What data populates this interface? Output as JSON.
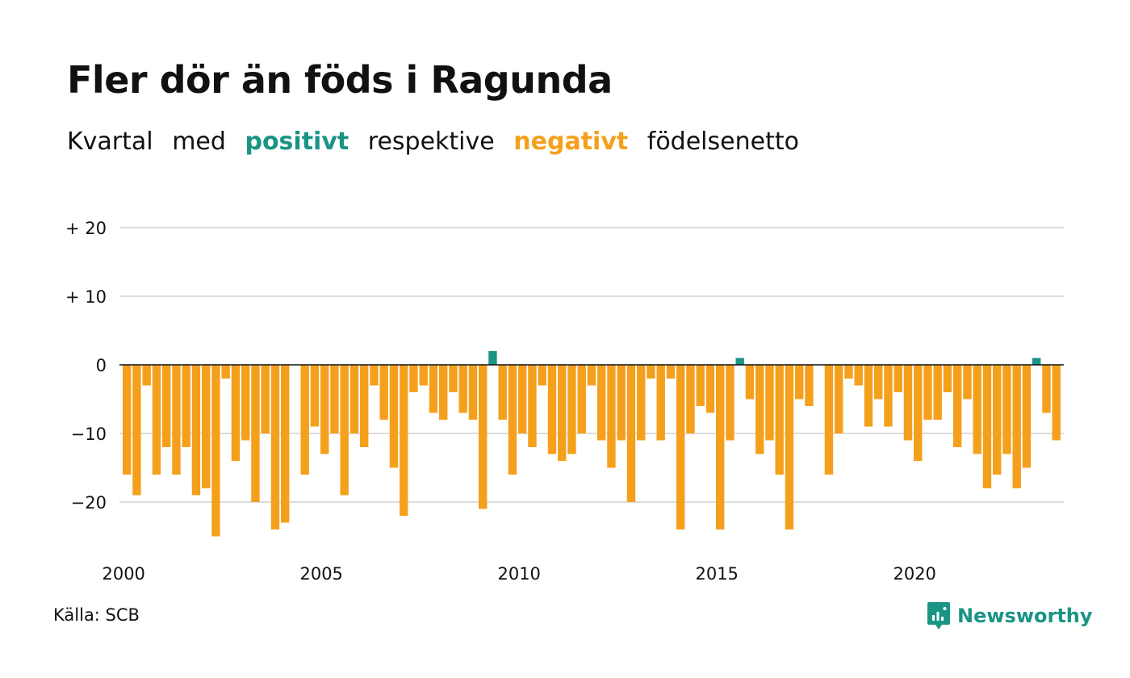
{
  "title": "Fler dör än föds i Ragunda",
  "subtitle": {
    "w1": "Kvartal",
    "w2": "med",
    "positive": "positivt",
    "w3": "respektive",
    "negative": "negativt",
    "w4": "födelsenetto"
  },
  "source": "Källa: SCB",
  "brand": "Newsworthy",
  "colors": {
    "positive": "#1a9485",
    "negative": "#f5a01d",
    "grid": "#dddddd",
    "zero_line": "#111111"
  },
  "chart_data": {
    "type": "bar",
    "title": "Fler dör än föds i Ragunda",
    "xlabel": "",
    "ylabel": "",
    "ylim": [
      -27,
      21
    ],
    "y_ticks": [
      {
        "value": 20,
        "label": "+ 20"
      },
      {
        "value": 10,
        "label": "+ 10"
      },
      {
        "value": 0,
        "label": "0"
      },
      {
        "value": -10,
        "label": "−10"
      },
      {
        "value": -20,
        "label": "−20"
      }
    ],
    "x_ticks": [
      "2000",
      "2005",
      "2010",
      "2015",
      "2020"
    ],
    "grid": true,
    "start": "2000 Q1",
    "frequency": "quarter",
    "values": [
      -16,
      -19,
      -3,
      -16,
      -12,
      -16,
      -12,
      -19,
      -18,
      -25,
      -2,
      -14,
      -11,
      -20,
      -10,
      -24,
      -23,
      0,
      -16,
      -9,
      -13,
      -10,
      -19,
      -10,
      -12,
      -3,
      -8,
      -15,
      -22,
      -4,
      -3,
      -7,
      -8,
      -4,
      -7,
      -8,
      -21,
      2,
      -8,
      -16,
      -10,
      -12,
      -3,
      -13,
      -14,
      -13,
      -10,
      -3,
      -11,
      -15,
      -11,
      -20,
      -11,
      -2,
      -11,
      -2,
      -24,
      -10,
      -6,
      -7,
      -24,
      -11,
      1,
      -5,
      -13,
      -11,
      -16,
      -24,
      -5,
      -6,
      0,
      -16,
      -10,
      -2,
      -3,
      -9,
      -5,
      -9,
      -4,
      -11,
      -14,
      -8,
      -8,
      -4,
      -12,
      -5,
      -13,
      -18,
      -16,
      -13,
      -18,
      -15,
      1,
      -7,
      -11
    ]
  }
}
